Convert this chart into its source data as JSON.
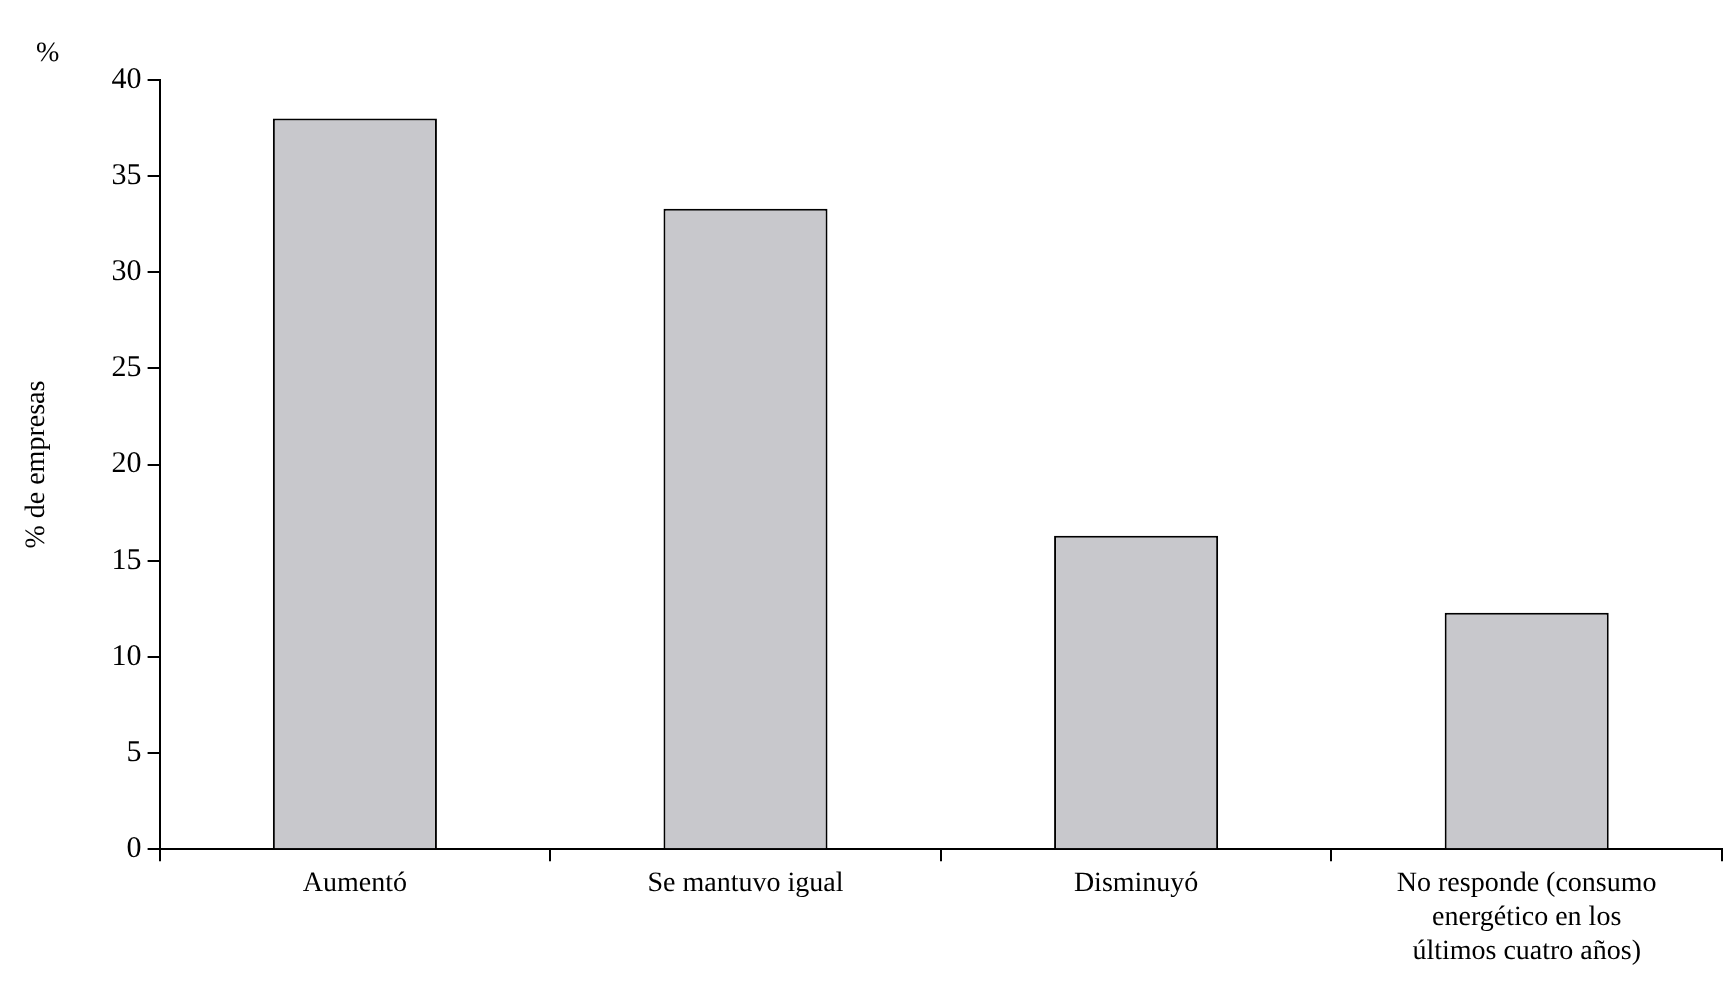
{
  "chart_data": {
    "type": "bar",
    "ylabel": "% de empresas",
    "annotations": [
      "%"
    ],
    "categories": [
      "Aumentó",
      "Se mantuvo igual",
      "Disminuyó",
      "No responde (consumo energético en los últimos cuatro años)"
    ],
    "values": [
      38,
      33.3,
      16.3,
      12.3
    ],
    "color": "#c8c8cc",
    "ylim": [
      0,
      40
    ],
    "yticks": [
      0,
      5,
      10,
      15,
      20,
      25,
      30,
      35,
      40
    ],
    "grid": false,
    "legend": false
  }
}
